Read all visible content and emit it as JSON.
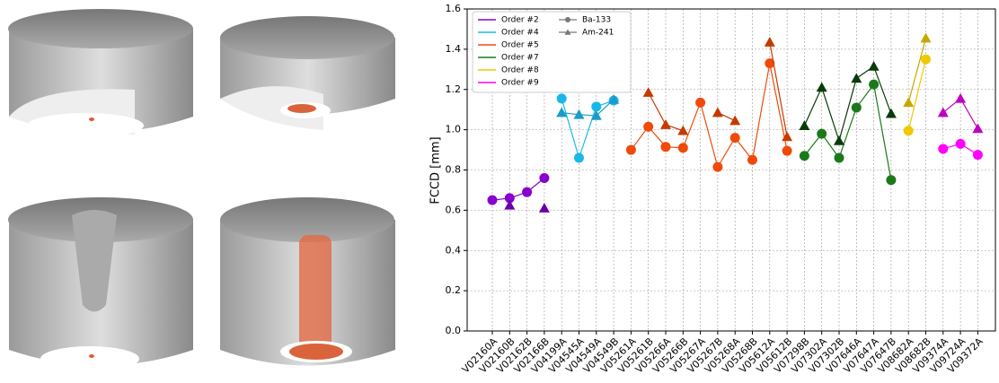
{
  "chart_data": {
    "type": "line",
    "ylabel": "FCCD [mm]",
    "categories": [
      "V02160A",
      "V02160B",
      "V02162B",
      "V02166B",
      "V04199A",
      "V04545A",
      "V04549A",
      "V04549B",
      "V05261A",
      "V05261B",
      "V05266A",
      "V05266B",
      "V05267A",
      "V05267B",
      "V05268A",
      "V05268B",
      "V05612A",
      "V05612B",
      "V07298B",
      "V07302A",
      "V07302B",
      "V07646A",
      "V07647A",
      "V07647B",
      "V08682A",
      "V08682B",
      "V09374A",
      "V09724A",
      "V09372A"
    ],
    "ylim": [
      0,
      1.6
    ],
    "yticks": [
      {
        "value": 0,
        "label": "0.0"
      },
      {
        "value": 0.2,
        "label": "0.2"
      },
      {
        "value": 0.4,
        "label": "0.4"
      },
      {
        "value": 0.6,
        "label": "0.6"
      },
      {
        "value": 0.8,
        "label": "0.8"
      },
      {
        "value": 1,
        "label": "1.0"
      },
      {
        "value": 1.2,
        "label": "1.2"
      },
      {
        "value": 1.4,
        "label": "1.4"
      },
      {
        "value": 1.6,
        "label": "1.6"
      }
    ],
    "grid": true,
    "legend": "upper left",
    "markers": [
      {
        "name": "Ba-133",
        "marker": "circle"
      },
      {
        "name": "Am-241",
        "marker": "triangle"
      }
    ],
    "series": [
      {
        "name": "Order #2",
        "color": "#8800cc",
        "am_color": "#6a00a8",
        "values": [
          0.65,
          0.66,
          0.69,
          0.76,
          null,
          null,
          null,
          null,
          null,
          null,
          null,
          null,
          null,
          null,
          null,
          null,
          null,
          null,
          null,
          null,
          null,
          null,
          null,
          null,
          null,
          null,
          null,
          null,
          null
        ],
        "am_values": [
          null,
          0.625,
          null,
          0.61,
          null,
          null,
          null,
          null,
          null,
          null,
          null,
          null,
          null,
          null,
          null,
          null,
          null,
          null,
          null,
          null,
          null,
          null,
          null,
          null,
          null,
          null,
          null,
          null,
          null
        ]
      },
      {
        "name": "Order #4",
        "color": "#19b8e8",
        "am_color": "#1a9cc8",
        "values": [
          null,
          null,
          null,
          null,
          1.155,
          0.86,
          1.115,
          1.145,
          null,
          null,
          null,
          null,
          null,
          null,
          null,
          null,
          null,
          null,
          null,
          null,
          null,
          null,
          null,
          null,
          null,
          null,
          null,
          null,
          null
        ],
        "am_values": [
          null,
          null,
          null,
          null,
          1.085,
          1.075,
          1.07,
          1.15,
          null,
          null,
          null,
          null,
          null,
          null,
          null,
          null,
          null,
          null,
          null,
          null,
          null,
          null,
          null,
          null,
          null,
          null,
          null,
          null,
          null
        ]
      },
      {
        "name": "Order #5",
        "color": "#f04a0a",
        "am_color": "#c43a00",
        "values": [
          null,
          null,
          null,
          null,
          null,
          null,
          null,
          null,
          0.9,
          1.015,
          0.915,
          0.91,
          1.135,
          0.815,
          0.96,
          0.85,
          1.33,
          0.895,
          null,
          null,
          null,
          null,
          null,
          null,
          null,
          null,
          null,
          null,
          null
        ],
        "am_values": [
          null,
          null,
          null,
          null,
          null,
          null,
          null,
          null,
          null,
          1.185,
          1.025,
          0.995,
          null,
          1.085,
          1.045,
          null,
          1.435,
          0.965,
          null,
          null,
          null,
          null,
          null,
          null,
          null,
          null,
          null,
          null,
          null
        ]
      },
      {
        "name": "Order #7",
        "color": "#1a7a1a",
        "am_color": "#0a3a0a",
        "values": [
          null,
          null,
          null,
          null,
          null,
          null,
          null,
          null,
          null,
          null,
          null,
          null,
          null,
          null,
          null,
          null,
          null,
          null,
          0.87,
          0.98,
          0.86,
          1.11,
          1.225,
          0.75,
          null,
          null,
          null,
          null,
          null
        ],
        "am_values": [
          null,
          null,
          null,
          null,
          null,
          null,
          null,
          null,
          null,
          null,
          null,
          null,
          null,
          null,
          null,
          null,
          null,
          null,
          1.02,
          1.21,
          0.945,
          1.255,
          1.315,
          1.08,
          null,
          null,
          null,
          null,
          null
        ]
      },
      {
        "name": "Order #8",
        "color": "#f0c800",
        "am_color": "#c8a800",
        "values": [
          null,
          null,
          null,
          null,
          null,
          null,
          null,
          null,
          null,
          null,
          null,
          null,
          null,
          null,
          null,
          null,
          null,
          null,
          null,
          null,
          null,
          null,
          null,
          null,
          0.995,
          1.35,
          null,
          null,
          null
        ],
        "am_values": [
          null,
          null,
          null,
          null,
          null,
          null,
          null,
          null,
          null,
          null,
          null,
          null,
          null,
          null,
          null,
          null,
          null,
          null,
          null,
          null,
          null,
          null,
          null,
          null,
          1.135,
          1.455,
          null,
          null,
          null
        ]
      },
      {
        "name": "Order #9",
        "color": "#ff00ff",
        "am_color": "#c000c0",
        "values": [
          null,
          null,
          null,
          null,
          null,
          null,
          null,
          null,
          null,
          null,
          null,
          null,
          null,
          null,
          null,
          null,
          null,
          null,
          null,
          null,
          null,
          null,
          null,
          null,
          null,
          null,
          0.905,
          0.93,
          0.875
        ],
        "am_values": [
          null,
          null,
          null,
          null,
          null,
          null,
          null,
          null,
          null,
          null,
          null,
          null,
          null,
          null,
          null,
          null,
          null,
          null,
          null,
          null,
          null,
          null,
          null,
          null,
          null,
          null,
          1.085,
          1.155,
          1.005
        ]
      }
    ]
  }
}
